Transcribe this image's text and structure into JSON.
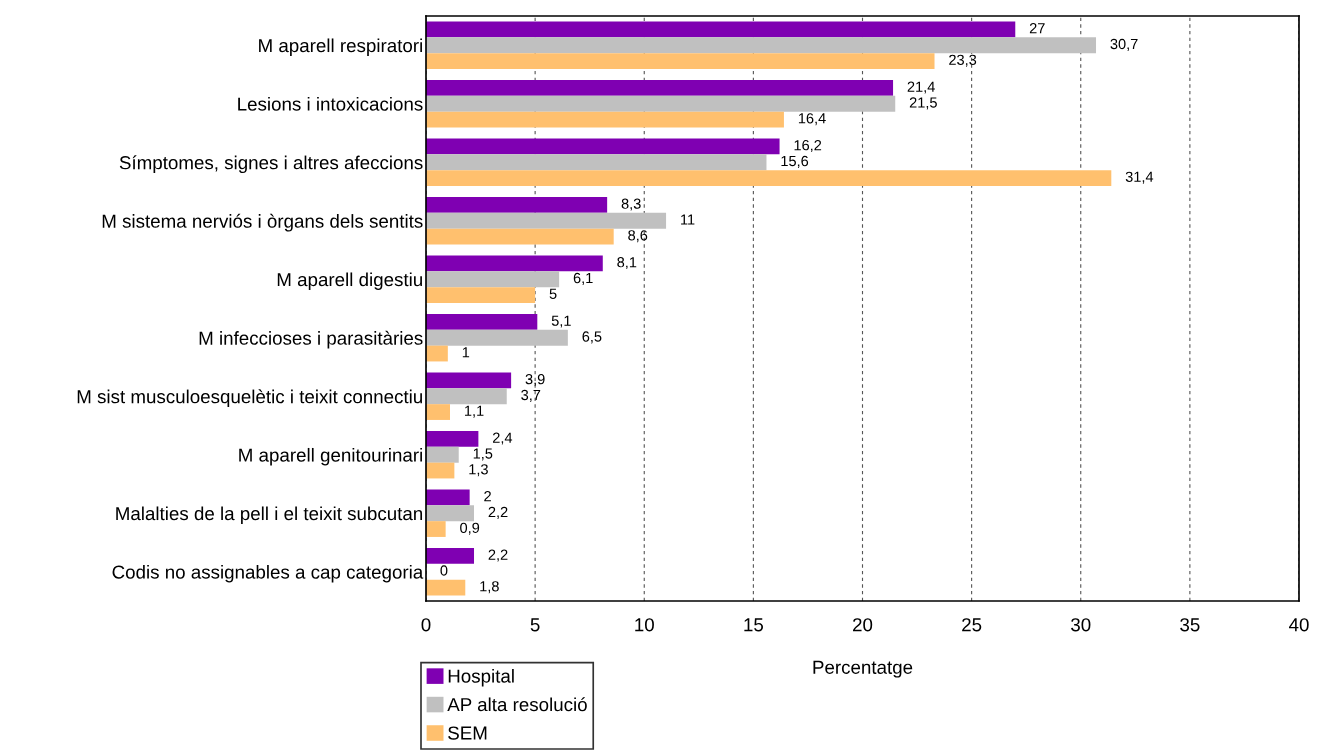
{
  "chart_data": {
    "type": "bar",
    "orientation": "horizontal",
    "xlabel": "Percentatge",
    "categories": [
      "M aparell respiratori",
      "Lesions i intoxicacions",
      "Símptomes, signes i altres afeccions",
      "M sistema nerviós i òrgans dels sentits",
      "M aparell digestiu",
      "M infeccioses i parasitàries",
      "M sist musculoesquelètic i teixit connectiu",
      "M aparell genitourinari",
      "Malalties de la pell i el teixit subcutan",
      "Codis no assignables a cap categoria"
    ],
    "series": [
      {
        "name": "Hospital",
        "color": "#7f00b2",
        "values": [
          27,
          21.4,
          16.2,
          8.3,
          8.1,
          5.1,
          3.9,
          2.4,
          2,
          2.2
        ],
        "value_labels": [
          "27",
          "21,4",
          "16,2",
          "8,3",
          "8,1",
          "5,1",
          "3,9",
          "2,4",
          "2",
          "2,2"
        ]
      },
      {
        "name": "AP alta resolució",
        "color": "#c0c0c0",
        "values": [
          30.7,
          21.5,
          15.6,
          11,
          6.1,
          6.5,
          3.7,
          1.5,
          2.2,
          0
        ],
        "value_labels": [
          "30,7",
          "21,5",
          "15,6",
          "11",
          "6,1",
          "6,5",
          "3,7",
          "1,5",
          "2,2",
          "0"
        ]
      },
      {
        "name": "SEM",
        "color": "#ffc06e",
        "values": [
          23.3,
          16.4,
          31.4,
          8.6,
          5,
          1,
          1.1,
          1.3,
          0.9,
          1.8
        ],
        "value_labels": [
          "23,3",
          "16,4",
          "31,4",
          "8,6",
          "5",
          "1",
          "1,1",
          "1,3",
          "0,9",
          "1,8"
        ]
      }
    ],
    "xlim": [
      0,
      40
    ],
    "xticks": [
      0,
      5,
      10,
      15,
      20,
      25,
      30,
      35,
      40
    ],
    "grid": "x",
    "legend": "bottom left"
  }
}
